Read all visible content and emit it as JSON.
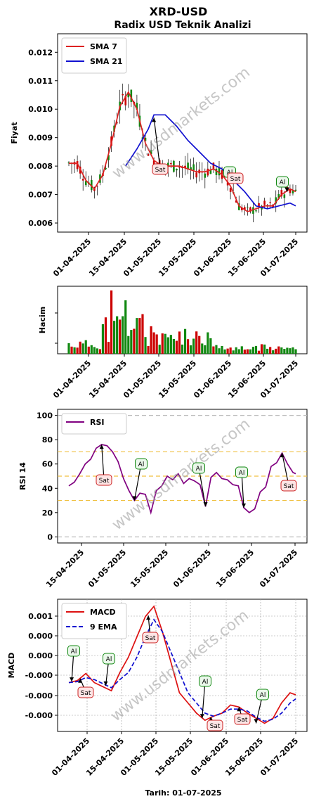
{
  "header": {
    "title": "XRD-USD",
    "subtitle": "Radix USD Teknik Analizi"
  },
  "watermark": "www.usdmarkets.com",
  "footer": {
    "label": "Tarih: 01-07-2025"
  },
  "chart_data": [
    {
      "id": "price",
      "type": "candlestick",
      "ylabel": "Fiyat",
      "x_ticks": [
        "01-04-2025",
        "15-04-2025",
        "01-05-2025",
        "15-05-2025",
        "01-06-2025",
        "15-06-2025",
        "01-07-2025"
      ],
      "y_ticks": [
        "0.006",
        "0.007",
        "0.008",
        "0.009",
        "0.010",
        "0.011",
        "0.012"
      ],
      "ylim": [
        0.00568,
        0.01265
      ],
      "series": [
        {
          "name": "SMA 7",
          "color": "#dd2222",
          "points": [
            [
              0,
              0.0081
            ],
            [
              3,
              0.0081
            ],
            [
              6,
              0.0075
            ],
            [
              9,
              0.0072
            ],
            [
              12,
              0.0077
            ],
            [
              15,
              0.0088
            ],
            [
              18,
              0.0101
            ],
            [
              21,
              0.0106
            ],
            [
              24,
              0.01
            ],
            [
              27,
              0.0088
            ],
            [
              30,
              0.0082
            ],
            [
              33,
              0.008
            ],
            [
              36,
              0.008
            ],
            [
              39,
              0.008
            ],
            [
              42,
              0.0079
            ],
            [
              45,
              0.0078
            ],
            [
              48,
              0.0078
            ],
            [
              51,
              0.0079
            ],
            [
              54,
              0.0077
            ],
            [
              57,
              0.0073
            ],
            [
              60,
              0.0066
            ],
            [
              63,
              0.0064
            ],
            [
              66,
              0.0065
            ],
            [
              69,
              0.0066
            ],
            [
              72,
              0.0066
            ],
            [
              75,
              0.007
            ],
            [
              78,
              0.0072
            ],
            [
              80,
              0.0071
            ]
          ]
        },
        {
          "name": "SMA 21",
          "color": "#1010d0",
          "points": [
            [
              20,
              0.008
            ],
            [
              24,
              0.0086
            ],
            [
              28,
              0.0093
            ],
            [
              30,
              0.0098
            ],
            [
              34,
              0.0098
            ],
            [
              38,
              0.0094
            ],
            [
              42,
              0.0089
            ],
            [
              46,
              0.0085
            ],
            [
              50,
              0.0081
            ],
            [
              54,
              0.0079
            ],
            [
              58,
              0.0075
            ],
            [
              62,
              0.0071
            ],
            [
              66,
              0.0066
            ],
            [
              70,
              0.0065
            ],
            [
              74,
              0.0066
            ],
            [
              78,
              0.0067
            ],
            [
              80,
              0.0066
            ]
          ]
        }
      ],
      "candles_range": {
        "start": "31-03-2025",
        "end": "01-07-2025"
      },
      "annotations": [
        {
          "label": "Sat",
          "type": "sell",
          "x": 30,
          "y": 0.0097
        },
        {
          "label": "Al",
          "type": "buy",
          "x": 58,
          "y": 0.0079
        },
        {
          "label": "Sat",
          "type": "sell",
          "x": 59,
          "y": 0.0076
        },
        {
          "label": "Al",
          "type": "buy",
          "x": 77,
          "y": 0.0071
        }
      ]
    },
    {
      "id": "volume",
      "type": "bar",
      "ylabel": "Hacim",
      "x_ticks": [
        "01-04-2025",
        "15-04-2025",
        "01-05-2025",
        "15-05-2025",
        "01-06-2025",
        "15-06-2025",
        "01-07-2025"
      ]
    },
    {
      "id": "rsi",
      "type": "line",
      "ylabel": "RSI 14",
      "x_ticks": [
        "15-04-2025",
        "01-05-2025",
        "15-05-2025",
        "01-06-2025",
        "15-06-2025",
        "01-07-2025"
      ],
      "y_ticks": [
        "0",
        "20",
        "40",
        "60",
        "80",
        "100"
      ],
      "ylim": [
        -5,
        105
      ],
      "series": [
        {
          "name": "RSI",
          "color": "#800080",
          "points": [
            [
              0,
              42
            ],
            [
              2,
              45
            ],
            [
              4,
              52
            ],
            [
              6,
              60
            ],
            [
              8,
              64
            ],
            [
              10,
              73
            ],
            [
              12,
              76
            ],
            [
              14,
              75
            ],
            [
              16,
              70
            ],
            [
              18,
              62
            ],
            [
              20,
              48
            ],
            [
              22,
              38
            ],
            [
              24,
              30
            ],
            [
              26,
              36
            ],
            [
              28,
              35
            ],
            [
              30,
              20
            ],
            [
              32,
              38
            ],
            [
              34,
              42
            ],
            [
              36,
              50
            ],
            [
              38,
              47
            ],
            [
              40,
              52
            ],
            [
              42,
              44
            ],
            [
              44,
              48
            ],
            [
              46,
              46
            ],
            [
              48,
              43
            ],
            [
              50,
              25
            ],
            [
              52,
              49
            ],
            [
              54,
              53
            ],
            [
              56,
              48
            ],
            [
              58,
              47
            ],
            [
              60,
              43
            ],
            [
              62,
              42
            ],
            [
              64,
              24
            ],
            [
              66,
              20
            ],
            [
              68,
              23
            ],
            [
              70,
              37
            ],
            [
              72,
              41
            ],
            [
              74,
              58
            ],
            [
              76,
              61
            ],
            [
              78,
              69
            ],
            [
              80,
              60
            ],
            [
              82,
              53
            ],
            [
              83,
              52
            ]
          ]
        }
      ],
      "hlines": [
        {
          "y": 100,
          "color": "#bbbbbb"
        },
        {
          "y": 70,
          "color": "#f0c040"
        },
        {
          "y": 50,
          "color": "#f0c040"
        },
        {
          "y": 30,
          "color": "#f0c040"
        },
        {
          "y": 0,
          "color": "#bbbbbb"
        }
      ],
      "annotations": [
        {
          "label": "Sat",
          "type": "sell",
          "x": 12,
          "y": 76
        },
        {
          "label": "Al",
          "type": "buy",
          "x": 24,
          "y": 30
        },
        {
          "label": "Al",
          "type": "buy",
          "x": 50,
          "y": 25
        },
        {
          "label": "Al",
          "type": "buy",
          "x": 64,
          "y": 24
        },
        {
          "label": "Sat",
          "type": "sell",
          "x": 78,
          "y": 69
        }
      ]
    },
    {
      "id": "macd",
      "type": "line",
      "ylabel": "MACD",
      "x_ticks": [
        "01-04-2025",
        "15-04-2025",
        "01-05-2025",
        "15-05-2025",
        "01-06-2025",
        "15-06-2025",
        "01-07-2025"
      ],
      "y_ticks": [
        "-0.000",
        "-0.000",
        "-0.000",
        "0.000",
        "0.000",
        "0.001"
      ],
      "series": [
        {
          "name": "MACD",
          "color": "#dd1111",
          "points": [
            [
              0,
              0.0
            ],
            [
              3,
              2e-05
            ],
            [
              6,
              9e-05
            ],
            [
              9,
              0.0
            ],
            [
              12,
              -4e-05
            ],
            [
              15,
              -8e-05
            ],
            [
              18,
              0.0001
            ],
            [
              21,
              0.00025
            ],
            [
              24,
              0.00045
            ],
            [
              27,
              0.00065
            ],
            [
              30,
              0.00075
            ],
            [
              33,
              0.0005
            ],
            [
              36,
              0.0002
            ],
            [
              39,
              -0.0001
            ],
            [
              42,
              -0.0002
            ],
            [
              45,
              -0.0003
            ],
            [
              48,
              -0.00037
            ],
            [
              51,
              -0.00033
            ],
            [
              54,
              -0.0003
            ],
            [
              57,
              -0.00022
            ],
            [
              60,
              -0.00024
            ],
            [
              63,
              -0.0003
            ],
            [
              66,
              -0.00035
            ],
            [
              69,
              -0.0004
            ],
            [
              72,
              -0.00035
            ],
            [
              75,
              -0.0002
            ],
            [
              78,
              -0.0001
            ],
            [
              80,
              -0.00012
            ]
          ]
        },
        {
          "name": "9 EMA",
          "color": "#1010d0",
          "points": [
            [
              0,
              0.0
            ],
            [
              3,
              1e-05
            ],
            [
              6,
              5e-05
            ],
            [
              9,
              3e-05
            ],
            [
              12,
              -1e-05
            ],
            [
              15,
              -5e-05
            ],
            [
              18,
              3e-05
            ],
            [
              21,
              0.0001
            ],
            [
              24,
              0.00025
            ],
            [
              27,
              0.00045
            ],
            [
              30,
              0.00062
            ],
            [
              33,
              0.0005
            ],
            [
              36,
              0.0003
            ],
            [
              39,
              0.0001
            ],
            [
              42,
              -0.0001
            ],
            [
              45,
              -0.0002
            ],
            [
              48,
              -0.0003
            ],
            [
              51,
              -0.00033
            ],
            [
              54,
              -0.0003
            ],
            [
              57,
              -0.00026
            ],
            [
              60,
              -0.00026
            ],
            [
              63,
              -0.00028
            ],
            [
              66,
              -0.00034
            ],
            [
              69,
              -0.00038
            ],
            [
              72,
              -0.00036
            ],
            [
              75,
              -0.0003
            ],
            [
              78,
              -0.0002
            ],
            [
              80,
              -0.00016
            ]
          ]
        }
      ],
      "annotations": [
        {
          "label": "Al",
          "type": "buy",
          "x": 1,
          "y": 1e-05
        },
        {
          "label": "Sat",
          "type": "sell",
          "x": 4,
          "y": 4e-05
        },
        {
          "label": "Al",
          "type": "buy",
          "x": 13,
          "y": -3e-05
        },
        {
          "label": "Sat",
          "type": "sell",
          "x": 28,
          "y": 0.00066
        },
        {
          "label": "Al",
          "type": "buy",
          "x": 47,
          "y": -0.00035
        },
        {
          "label": "Sat",
          "type": "sell",
          "x": 50,
          "y": -0.00034
        },
        {
          "label": "Sat",
          "type": "sell",
          "x": 60,
          "y": -0.00024
        },
        {
          "label": "Al",
          "type": "buy",
          "x": 66,
          "y": -0.0004
        }
      ]
    }
  ]
}
